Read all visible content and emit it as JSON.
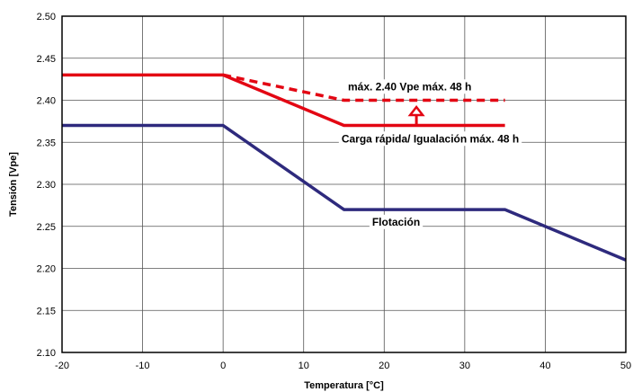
{
  "chart_data": {
    "type": "line",
    "title": "",
    "xlabel": "Temperatura [°C]",
    "ylabel": "Tensión [Vpe]",
    "xlim": [
      -20,
      50
    ],
    "ylim": [
      2.1,
      2.5
    ],
    "x_ticks": [
      -20,
      -10,
      0,
      10,
      20,
      30,
      40,
      50
    ],
    "y_ticks": [
      2.1,
      2.15,
      2.2,
      2.25,
      2.3,
      2.35,
      2.4,
      2.45,
      2.5
    ],
    "x_tick_labels": [
      "-20",
      "-10",
      "0",
      "10",
      "20",
      "30",
      "40",
      "50"
    ],
    "y_tick_labels": [
      "2.10",
      "2.15",
      "2.20",
      "2.25",
      "2.30",
      "2.35",
      "2.40",
      "2.45",
      "2.50"
    ],
    "grid": true,
    "legend": "none",
    "series": [
      {
        "color": "#e30613",
        "style": "solid",
        "points": [
          [
            -20,
            2.43
          ],
          [
            0,
            2.43
          ],
          [
            15,
            2.37
          ],
          [
            35,
            2.37
          ]
        ]
      },
      {
        "color": "#e30613",
        "style": "dashed",
        "points": [
          [
            0,
            2.43
          ],
          [
            5,
            2.42
          ],
          [
            15,
            2.4
          ],
          [
            35,
            2.4
          ]
        ]
      },
      {
        "color": "#2e2a7d",
        "style": "solid",
        "points": [
          [
            -20,
            2.37
          ],
          [
            0,
            2.37
          ],
          [
            15,
            2.27
          ],
          [
            35,
            2.27
          ],
          [
            50,
            2.21
          ]
        ]
      }
    ],
    "annotations": [
      {
        "text": "máx. 2.40 Vpe máx. 48 h",
        "x": 15.5,
        "y": 2.412
      },
      {
        "text": "Carga rápida/ Igualación máx. 48 h",
        "x": 14.7,
        "y": 2.35
      },
      {
        "text": "Flotación",
        "x": 18.5,
        "y": 2.251
      }
    ],
    "arrow": {
      "x": 24,
      "from_y": 2.37,
      "to_y": 2.392,
      "color": "#e30613"
    }
  }
}
